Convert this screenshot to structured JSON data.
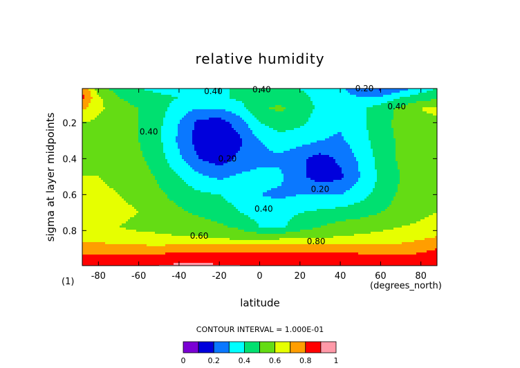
{
  "chart_data": {
    "type": "heatmap",
    "title": "relative humidity",
    "xlabel": "latitude",
    "ylabel": "sigma at layer midpoints",
    "x_units": "(degrees_north)",
    "panel_label": "(1)",
    "xlim": [
      -88,
      88
    ],
    "ylim": [
      0.995,
      0.01
    ],
    "x_ticks": [
      -80,
      -60,
      -40,
      -20,
      0,
      20,
      40,
      60,
      80
    ],
    "y_ticks": [
      0.2,
      0.4,
      0.6,
      0.8
    ],
    "contour_interval_text": "CONTOUR INTERVAL = 1.000E-01",
    "colorbar": {
      "levels": [
        0,
        0.1,
        0.2,
        0.3,
        0.4,
        0.5,
        0.6,
        0.7,
        0.8,
        0.9,
        1.0
      ],
      "tick_values": [
        0,
        0.2,
        0.4,
        0.6,
        0.8,
        1
      ],
      "tick_labels": [
        "0",
        "0.2",
        "0.4",
        "0.6",
        "0.8",
        "1"
      ],
      "colors": [
        "#7b00d4",
        "#0000dc",
        "#0a78ff",
        "#00ffff",
        "#00e070",
        "#64dc14",
        "#e6ff00",
        "#ff9e00",
        "#ff0000",
        "#ff99a8"
      ]
    },
    "contour_labels": [
      {
        "text": "0.40",
        "x": -23,
        "y": 0.025
      },
      {
        "text": "0.40",
        "x": 1,
        "y": 0.015
      },
      {
        "text": "0.20",
        "x": 52,
        "y": 0.01
      },
      {
        "text": "0.40",
        "x": 68,
        "y": 0.11
      },
      {
        "text": "0.40",
        "x": -55,
        "y": 0.25
      },
      {
        "text": "0.20",
        "x": -16,
        "y": 0.4
      },
      {
        "text": "0.20",
        "x": 30,
        "y": 0.57
      },
      {
        "text": "0.40",
        "x": 2,
        "y": 0.68
      },
      {
        "text": "0.60",
        "x": -30,
        "y": 0.83
      },
      {
        "text": "0.80",
        "x": 28,
        "y": 0.86
      }
    ],
    "grid": {
      "lat": [
        -88,
        -80,
        -70,
        -60,
        -50,
        -40,
        -30,
        -20,
        -10,
        0,
        10,
        20,
        30,
        40,
        50,
        60,
        70,
        80,
        88
      ],
      "sigma": [
        0.01,
        0.06,
        0.12,
        0.2,
        0.3,
        0.4,
        0.5,
        0.6,
        0.7,
        0.78,
        0.85,
        0.9,
        0.95,
        0.995
      ],
      "values": [
        [
          0.8,
          0.55,
          0.45,
          0.4,
          0.38,
          0.36,
          0.34,
          0.38,
          0.42,
          0.44,
          0.44,
          0.4,
          0.36,
          0.32,
          0.22,
          0.18,
          0.25,
          0.35,
          0.4
        ],
        [
          0.82,
          0.62,
          0.5,
          0.45,
          0.42,
          0.4,
          0.38,
          0.38,
          0.42,
          0.45,
          0.45,
          0.42,
          0.38,
          0.35,
          0.3,
          0.32,
          0.4,
          0.45,
          0.48
        ],
        [
          0.72,
          0.62,
          0.55,
          0.5,
          0.44,
          0.35,
          0.3,
          0.3,
          0.36,
          0.48,
          0.52,
          0.45,
          0.38,
          0.34,
          0.38,
          0.45,
          0.52,
          0.6,
          0.62
        ],
        [
          0.6,
          0.58,
          0.55,
          0.5,
          0.42,
          0.3,
          0.17,
          0.15,
          0.25,
          0.4,
          0.45,
          0.42,
          0.36,
          0.32,
          0.38,
          0.45,
          0.54,
          0.58,
          0.58
        ],
        [
          0.58,
          0.58,
          0.55,
          0.5,
          0.42,
          0.28,
          0.15,
          0.12,
          0.18,
          0.3,
          0.36,
          0.34,
          0.3,
          0.28,
          0.36,
          0.45,
          0.52,
          0.55,
          0.55
        ],
        [
          0.58,
          0.58,
          0.56,
          0.52,
          0.44,
          0.32,
          0.2,
          0.15,
          0.22,
          0.26,
          0.28,
          0.22,
          0.16,
          0.22,
          0.32,
          0.44,
          0.52,
          0.55,
          0.55
        ],
        [
          0.6,
          0.6,
          0.58,
          0.56,
          0.48,
          0.4,
          0.32,
          0.28,
          0.32,
          0.34,
          0.32,
          0.22,
          0.15,
          0.18,
          0.3,
          0.42,
          0.5,
          0.54,
          0.55
        ],
        [
          0.62,
          0.62,
          0.6,
          0.58,
          0.52,
          0.46,
          0.42,
          0.4,
          0.36,
          0.3,
          0.28,
          0.3,
          0.3,
          0.3,
          0.36,
          0.44,
          0.52,
          0.55,
          0.56
        ],
        [
          0.62,
          0.62,
          0.62,
          0.6,
          0.56,
          0.52,
          0.48,
          0.45,
          0.4,
          0.36,
          0.36,
          0.4,
          0.42,
          0.44,
          0.46,
          0.5,
          0.54,
          0.58,
          0.6
        ],
        [
          0.6,
          0.6,
          0.6,
          0.58,
          0.58,
          0.56,
          0.55,
          0.52,
          0.48,
          0.4,
          0.38,
          0.45,
          0.5,
          0.54,
          0.56,
          0.58,
          0.6,
          0.62,
          0.64
        ],
        [
          0.68,
          0.68,
          0.66,
          0.64,
          0.62,
          0.62,
          0.62,
          0.61,
          0.6,
          0.6,
          0.61,
          0.62,
          0.62,
          0.62,
          0.63,
          0.64,
          0.66,
          0.7,
          0.72
        ],
        [
          0.74,
          0.74,
          0.74,
          0.74,
          0.74,
          0.76,
          0.76,
          0.77,
          0.77,
          0.78,
          0.78,
          0.78,
          0.77,
          0.77,
          0.76,
          0.76,
          0.76,
          0.78,
          0.8
        ],
        [
          0.82,
          0.82,
          0.82,
          0.83,
          0.84,
          0.85,
          0.85,
          0.85,
          0.85,
          0.84,
          0.84,
          0.84,
          0.84,
          0.84,
          0.83,
          0.82,
          0.82,
          0.82,
          0.84
        ],
        [
          0.86,
          0.86,
          0.88,
          0.89,
          0.9,
          0.92,
          0.92,
          0.91,
          0.9,
          0.88,
          0.88,
          0.88,
          0.88,
          0.88,
          0.87,
          0.86,
          0.86,
          0.86,
          0.88
        ]
      ]
    }
  }
}
